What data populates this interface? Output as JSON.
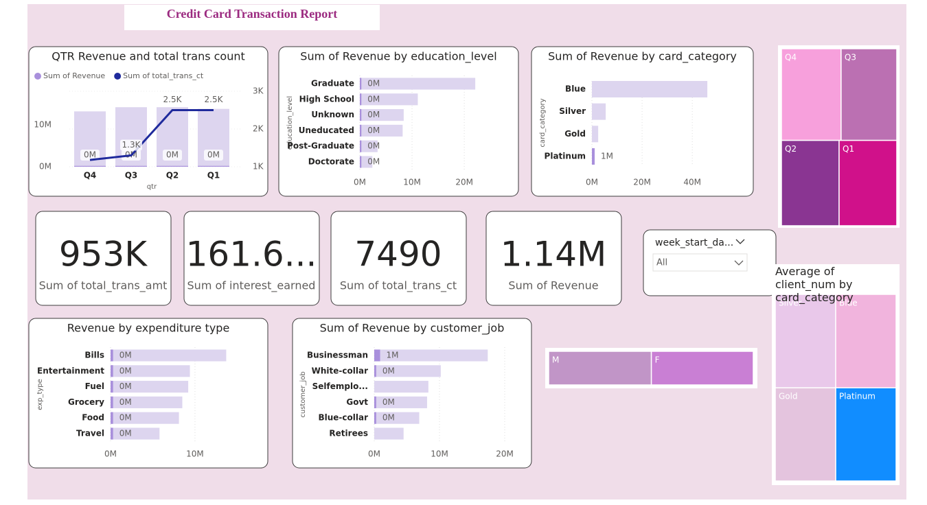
{
  "title": "Credit Card Transaction Report",
  "cards": [
    {
      "value": "953K",
      "label": "Sum of total_trans_amt"
    },
    {
      "value": "161.6...",
      "label": "Sum of interest_earned"
    },
    {
      "value": "7490",
      "label": "Sum of total_trans_ct"
    },
    {
      "value": "1.14M",
      "label": "Sum of Revenue"
    }
  ],
  "slicer": {
    "label": "week_start_da...",
    "selection": "All"
  },
  "chart_data": [
    {
      "type": "combo",
      "title": "QTR Revenue and total trans count",
      "x_label": "qtr",
      "categories": [
        "Q4",
        "Q3",
        "Q2",
        "Q1"
      ],
      "background_color": "#ddd5ef",
      "ylim": [
        0,
        18
      ],
      "yticks": [
        {
          "value": 0,
          "label": "0M"
        },
        {
          "value": 10,
          "label": "10M"
        }
      ],
      "y2lim": [
        1000,
        3000
      ],
      "y2ticks": [
        {
          "value": 1000,
          "label": "1K"
        },
        {
          "value": 2000,
          "label": "2K"
        },
        {
          "value": 3000,
          "label": "3K"
        }
      ],
      "series": [
        {
          "name": "Sum of Revenue",
          "type": "bar",
          "color": "#a990dc",
          "values": [
            13.2,
            14.2,
            14.2,
            13.8
          ],
          "highlight_values": [
            0.2,
            0.2,
            0.2,
            0.2
          ],
          "highlight_value_labels": [
            "0M",
            "0M",
            "0M",
            "0M"
          ]
        },
        {
          "name": "Sum of total_trans_ct",
          "type": "line",
          "axis": "y2",
          "color": "#1f2a9c",
          "values": [
            1180,
            1300,
            2500,
            2500
          ],
          "value_labels": [
            null,
            "1.3K",
            "2.5K",
            "2.5K"
          ]
        }
      ]
    },
    {
      "type": "hbar",
      "title": "Sum of Revenue by education_level",
      "y_label": "education_level",
      "categories": [
        "Graduate",
        "High School",
        "Unknown",
        "Uneducated",
        "Post-Graduate",
        "Doctorate"
      ],
      "values": [
        22.1,
        11.1,
        8.4,
        8.2,
        3.4,
        2.4
      ],
      "highlight_values": [
        0.3,
        0.3,
        0.3,
        0.3,
        0.3,
        0.3
      ],
      "highlight_value_labels": [
        "0M",
        "0M",
        "0M",
        "0M",
        "0M",
        "0M"
      ],
      "color": "#a990dc",
      "background_color": "#ddd5ef",
      "xlim": [
        0,
        28
      ],
      "xticks": [
        {
          "value": 0,
          "label": "0M"
        },
        {
          "value": 10,
          "label": "10M"
        },
        {
          "value": 20,
          "label": "20M"
        }
      ]
    },
    {
      "type": "hbar",
      "title": "Sum of Revenue by card_category",
      "y_label": "card_category",
      "categories": [
        "Blue",
        "Silver",
        "Gold",
        "Platinum"
      ],
      "values": [
        46,
        5.5,
        2.5,
        1.1
      ],
      "highlight_values": [
        null,
        null,
        null,
        1.1
      ],
      "highlight_value_labels": [
        null,
        null,
        null,
        "1M"
      ],
      "color": "#a990dc",
      "background_color": "#ddd5ef",
      "xlim": [
        0,
        55
      ],
      "xticks": [
        {
          "value": 0,
          "label": "0M"
        },
        {
          "value": 20,
          "label": "20M"
        },
        {
          "value": 40,
          "label": "40M"
        }
      ]
    },
    {
      "type": "hbar",
      "title": "Revenue by expenditure type",
      "y_label": "exp_type",
      "categories": [
        "Bills",
        "Entertainment",
        "Fuel",
        "Grocery",
        "Food",
        "Travel"
      ],
      "values": [
        13.7,
        9.4,
        9.2,
        8.5,
        8.1,
        5.8
      ],
      "highlight_values": [
        0.3,
        0.3,
        0.3,
        0.3,
        0.3,
        0.3
      ],
      "highlight_value_labels": [
        "0M",
        "0M",
        "0M",
        "0M",
        "0M",
        "0M"
      ],
      "color": "#a990dc",
      "background_color": "#ddd5ef",
      "xlim": [
        0,
        17
      ],
      "xticks": [
        {
          "value": 0,
          "label": "0M"
        },
        {
          "value": 10,
          "label": "10M"
        }
      ]
    },
    {
      "type": "hbar",
      "title": "Sum of Revenue by customer_job",
      "y_label": "customer_job",
      "categories": [
        "Businessman",
        "White-collar",
        "Selfemplo...",
        "Govt",
        "Blue-collar",
        "Retirees"
      ],
      "values": [
        17.4,
        10.2,
        8.3,
        8.1,
        6.9,
        4.5
      ],
      "highlight_values": [
        0.9,
        0.3,
        null,
        0.3,
        0.3,
        null
      ],
      "highlight_value_labels": [
        "1M",
        "0M",
        null,
        "0M",
        "0M",
        null
      ],
      "color": "#a990dc",
      "background_color": "#ddd5ef",
      "xlim": [
        0,
        22
      ],
      "xticks": [
        {
          "value": 0,
          "label": "0M"
        },
        {
          "value": 10,
          "label": "10M"
        },
        {
          "value": 20,
          "label": "20M"
        }
      ]
    },
    {
      "type": "treemap",
      "categories": [
        "Q4",
        "Q3",
        "Q2",
        "Q1"
      ],
      "values": [
        15,
        14,
        13.5,
        13.5
      ],
      "colors": [
        "#f7a0dc",
        "#bb70b2",
        "#8a3592",
        "#d0118a"
      ]
    },
    {
      "type": "treemap",
      "title": "Average of client_num by card_category",
      "categories": [
        "Silver",
        "Blue",
        "Gold",
        "Platinum"
      ],
      "values": [
        740,
        739,
        738,
        737
      ],
      "colors": [
        "#e9c8ea",
        "#f1b4dd",
        "#e4c4de",
        "#118dff"
      ]
    },
    {
      "type": "treemap",
      "categories": [
        "F",
        "M"
      ],
      "values": [
        49.8,
        50.2
      ],
      "colors": [
        "#c97fd4",
        "#c195c7"
      ]
    }
  ]
}
